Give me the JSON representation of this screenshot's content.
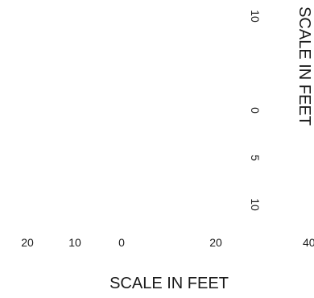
{
  "horizontal_scale": {
    "label": "SCALE IN FEET",
    "ticks": [
      "20",
      "10",
      "0",
      "20",
      "40"
    ]
  },
  "vertical_scale": {
    "label": "SCALE IN FEET",
    "ticks": [
      "10",
      "0",
      "5",
      "10"
    ]
  }
}
